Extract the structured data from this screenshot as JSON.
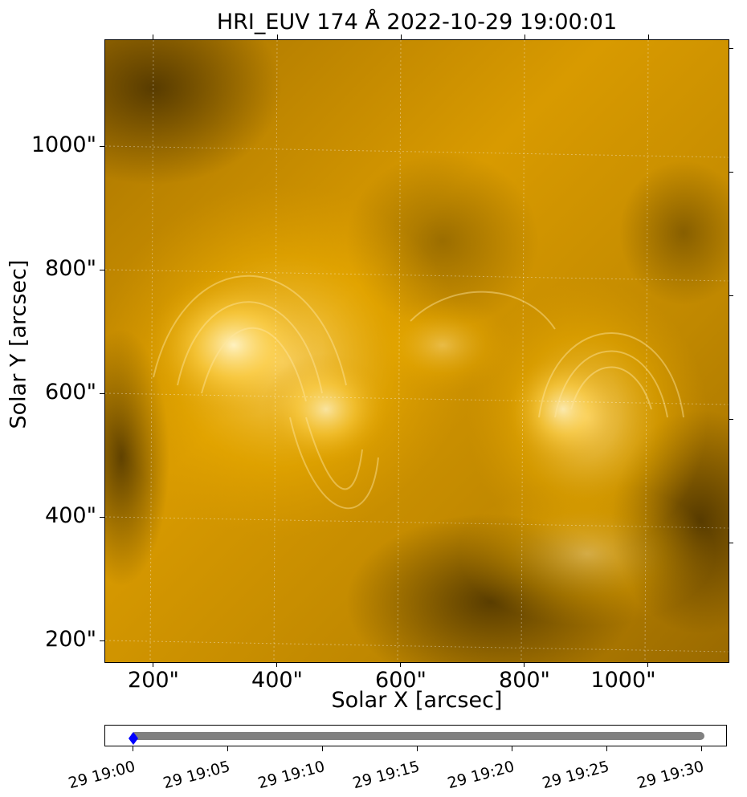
{
  "figure": {
    "title": "HRI_EUV 174 Å 2022-10-29 19:00:01",
    "xlabel": "Solar X [arcsec]",
    "ylabel": "Solar Y [arcsec]",
    "x_ticks": [
      "200\"",
      "400\"",
      "600\"",
      "800\"",
      "1000\""
    ],
    "y_ticks": [
      "1000\"",
      "800\"",
      "600\"",
      "400\"",
      "200\""
    ],
    "colors": {
      "image_base": "#e0a000",
      "image_dark": "#4a3200",
      "image_bright": "#ffe9a8",
      "timeline_line": "#808080",
      "timeline_marker": "#0000ff"
    }
  },
  "timeline": {
    "tick_labels": [
      "29 19:00",
      "29 19:05",
      "29 19:10",
      "29 19:15",
      "29 19:20",
      "29 19:25",
      "29 19:30"
    ],
    "current_marker_icon": "diamond-marker-icon"
  }
}
